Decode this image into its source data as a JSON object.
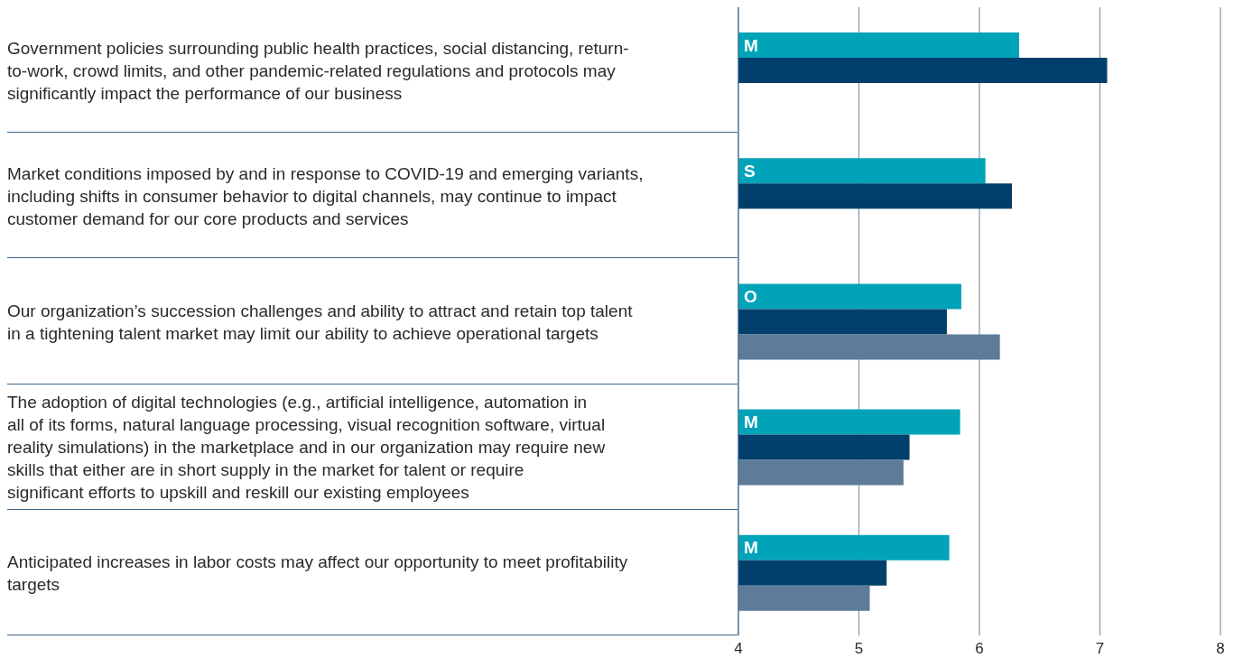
{
  "chart_data": {
    "type": "bar",
    "orientation": "horizontal",
    "categories": [
      "Government policies surrounding public health practices, social distancing, return-to-work, crowd limits, and other pandemic-related regulations and protocols may significantly impact the performance of our business",
      "Market conditions imposed by and in response to COVID-19 and emerging variants, including shifts in consumer behavior to digital channels, may continue to impact customer demand for our core products and services",
      "Our organization’s succession challenges and ability to attract and retain top talent in a tightening talent market may limit our ability to achieve operational targets",
      "The adoption of digital technologies (e.g., artificial intelligence, automation in all of its forms, natural language processing, visual recognition software, virtual reality simulations) in the marketplace and in our organization may require new skills that either are in short supply in the market for talent or require significant efforts to upskill and reskill our existing employees",
      "Anticipated increases in labor costs may affect our opportunity to meet profitability targets"
    ],
    "series": [
      {
        "color": "#00a3b8",
        "values": [
          6.33,
          6.05,
          5.85,
          5.84,
          5.75
        ],
        "value_labels": [
          "M",
          "S",
          "O",
          "M",
          "M"
        ]
      },
      {
        "color": "#003f6b",
        "values": [
          7.06,
          6.27,
          5.73,
          5.42,
          5.23
        ]
      },
      {
        "color": "#5e7b9a",
        "values": [
          null,
          null,
          6.17,
          5.37,
          5.09
        ]
      }
    ],
    "xlim": [
      4,
      8
    ],
    "xticks": [
      4,
      5,
      6,
      7,
      8
    ],
    "grid": "x",
    "legend": false
  }
}
